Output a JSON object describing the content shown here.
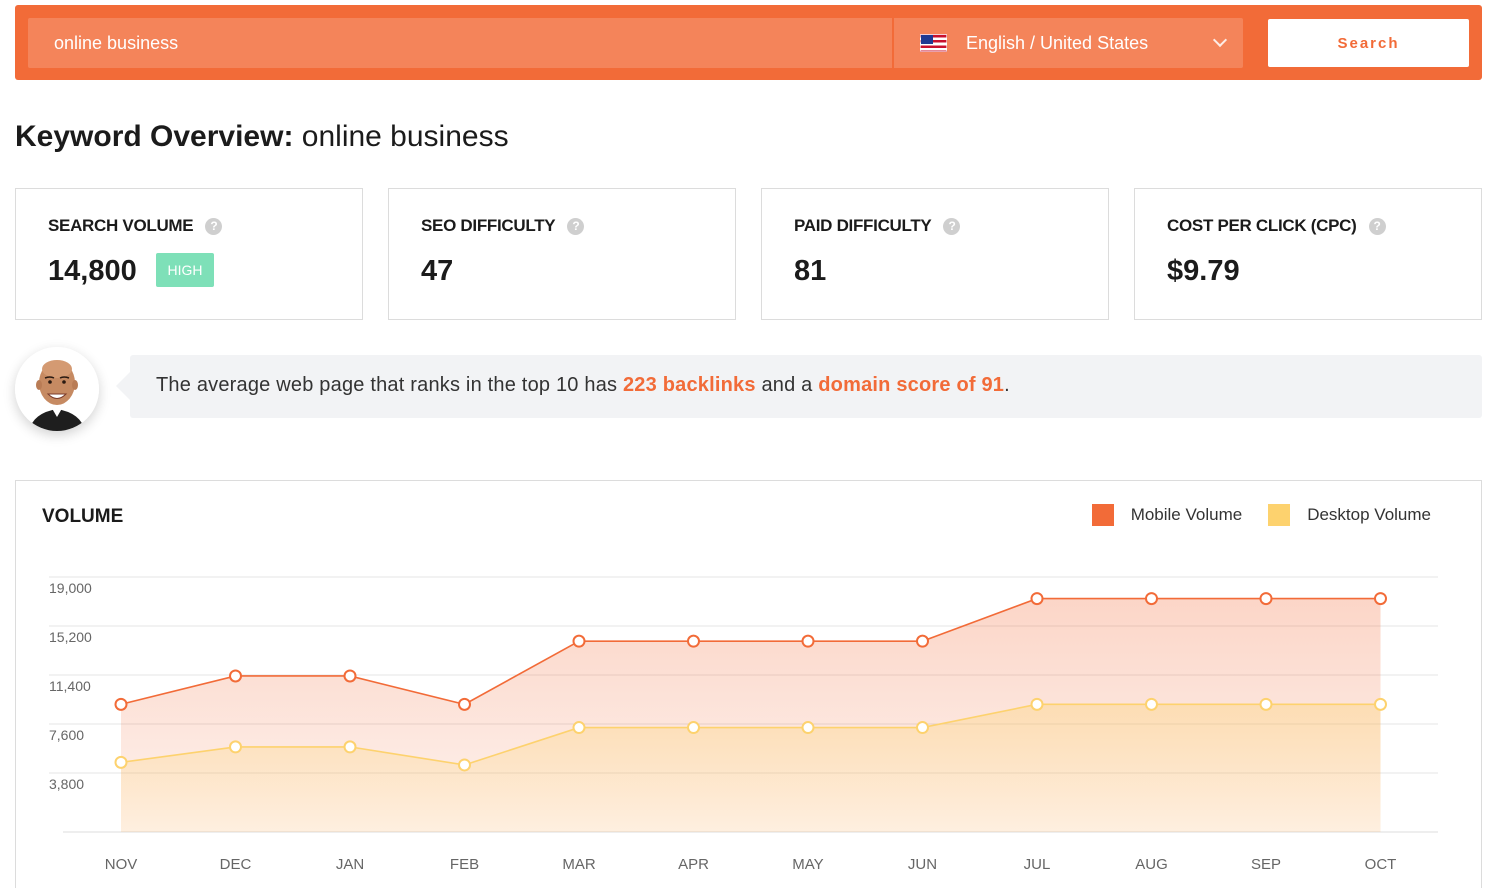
{
  "search": {
    "query": "online business",
    "language": "English / United States",
    "button_label": "Search"
  },
  "page_title": {
    "label": "Keyword Overview:",
    "keyword": "online business"
  },
  "metrics": [
    {
      "label": "SEARCH VOLUME",
      "value": "14,800",
      "badge": "HIGH"
    },
    {
      "label": "SEO DIFFICULTY",
      "value": "47"
    },
    {
      "label": "PAID DIFFICULTY",
      "value": "81"
    },
    {
      "label": "COST PER CLICK (CPC)",
      "value": "$9.79"
    }
  ],
  "help_glyph": "?",
  "insight": {
    "prefix": "The average web page that ranks in the top 10 has ",
    "backlinks": "223 backlinks",
    "middle": " and a ",
    "domain_score": "domain score of 91",
    "suffix": "."
  },
  "colors": {
    "brand": "#f26b38",
    "mobile": "#f26b38",
    "desktop": "#fdd26e",
    "badge": "#7ee0b8"
  },
  "chart_data": {
    "type": "area",
    "title": "VOLUME",
    "categories": [
      "NOV",
      "DEC",
      "JAN",
      "FEB",
      "MAR",
      "APR",
      "MAY",
      "JUN",
      "JUL",
      "AUG",
      "SEP",
      "OCT"
    ],
    "series": [
      {
        "name": "Mobile Volume",
        "values": [
          9900,
          12100,
          12100,
          9900,
          14800,
          14800,
          14800,
          14800,
          18100,
          18100,
          18100,
          18100
        ]
      },
      {
        "name": "Desktop Volume",
        "values": [
          5400,
          6600,
          6600,
          5200,
          8100,
          8100,
          8100,
          8100,
          9900,
          9900,
          9900,
          9900
        ]
      }
    ],
    "y_ticks": [
      "19,000",
      "15,200",
      "11,400",
      "7,600",
      "3,800"
    ],
    "y_tick_values": [
      19000,
      15200,
      11400,
      7600,
      3800
    ],
    "ylim": [
      0,
      19000
    ],
    "grid": true,
    "legend_position": "top-right"
  }
}
